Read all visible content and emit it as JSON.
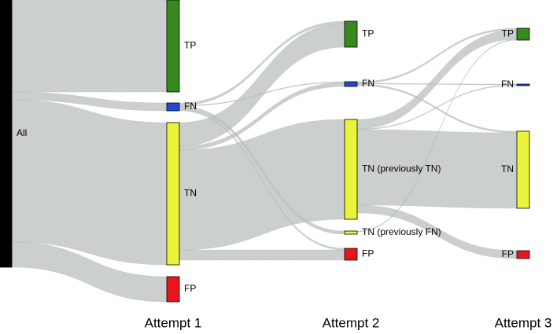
{
  "chart_data": {
    "type": "sankey",
    "columns": [
      null,
      "Attempt 1",
      "Attempt 2",
      "Attempt 3"
    ],
    "nodes": [
      {
        "name": "All",
        "column": 0,
        "color": "#000000"
      },
      {
        "name": "TP",
        "column": 1,
        "color": "#36891c"
      },
      {
        "name": "FN",
        "column": 1,
        "color": "#2448d8"
      },
      {
        "name": "TN",
        "column": 1,
        "color": "#eaf53a"
      },
      {
        "name": "FP",
        "column": 1,
        "color": "#e8161b"
      },
      {
        "name": "TP",
        "column": 2,
        "color": "#36891c"
      },
      {
        "name": "FN",
        "column": 2,
        "color": "#2448d8"
      },
      {
        "name": "TN (previously TN)",
        "column": 2,
        "color": "#eaf53a"
      },
      {
        "name": "TN (previously FN)",
        "column": 2,
        "color": "#eaf53a"
      },
      {
        "name": "FP",
        "column": 2,
        "color": "#e8161b"
      },
      {
        "name": "TP",
        "column": 3,
        "color": "#36891c"
      },
      {
        "name": "FN",
        "column": 3,
        "color": "#2448d8"
      },
      {
        "name": "TN",
        "column": 3,
        "color": "#eaf53a"
      },
      {
        "name": "FP",
        "column": 3,
        "color": "#e8161b"
      }
    ],
    "links": [
      {
        "source": 0,
        "target": 1,
        "value": 117
      },
      {
        "source": 0,
        "target": 2,
        "value": 10
      },
      {
        "source": 0,
        "target": 3,
        "value": 181
      },
      {
        "source": 0,
        "target": 4,
        "value": 32
      },
      {
        "source": 2,
        "target": 5,
        "value": 3
      },
      {
        "source": 2,
        "target": 6,
        "value": 1
      },
      {
        "source": 2,
        "target": 8,
        "value": 4
      },
      {
        "source": 2,
        "target": 9,
        "value": 2
      },
      {
        "source": 3,
        "target": 5,
        "value": 30
      },
      {
        "source": 3,
        "target": 6,
        "value": 5
      },
      {
        "source": 3,
        "target": 7,
        "value": 127
      },
      {
        "source": 3,
        "target": 9,
        "value": 13
      },
      {
        "source": 6,
        "target": 10,
        "value": 2
      },
      {
        "source": 6,
        "target": 11,
        "value": 1
      },
      {
        "source": 6,
        "target": 12,
        "value": 2
      },
      {
        "source": 7,
        "target": 10,
        "value": 12
      },
      {
        "source": 7,
        "target": 11,
        "value": 1
      },
      {
        "source": 7,
        "target": 12,
        "value": 96
      },
      {
        "source": 7,
        "target": 13,
        "value": 10
      },
      {
        "source": 8,
        "target": 10,
        "value": 1
      }
    ]
  }
}
